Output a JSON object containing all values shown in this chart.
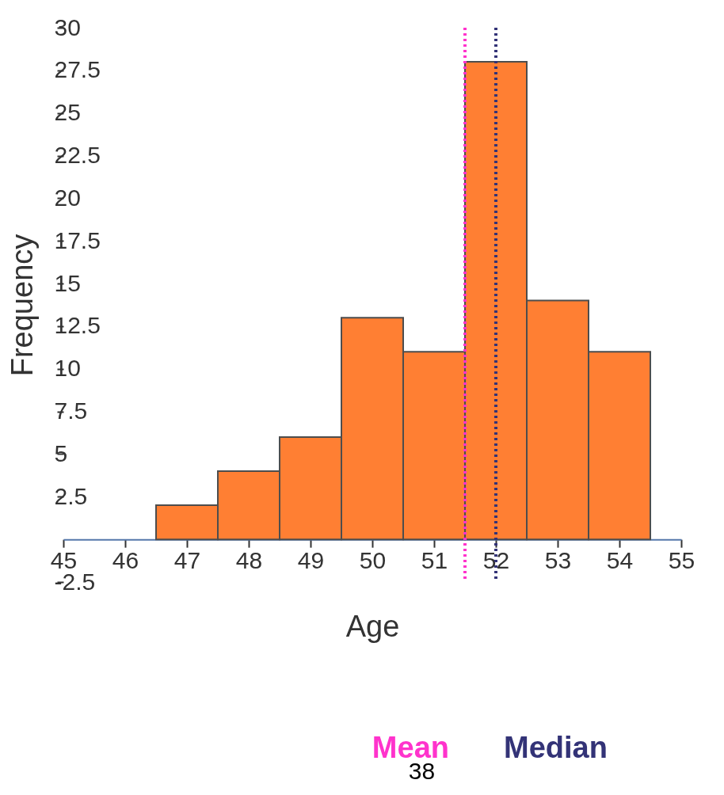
{
  "chart_data": {
    "type": "histogram",
    "xlabel": "Age",
    "ylabel": "Frequency",
    "bins": [
      46.5,
      47.5,
      48.5,
      49.5,
      50.5,
      51.5,
      52.5,
      53.5,
      54.5
    ],
    "values": [
      2,
      4,
      6,
      13,
      11,
      28,
      14,
      11
    ],
    "color": "#ff7f33",
    "xlim": [
      45,
      55
    ],
    "xticks": [
      45,
      46,
      47,
      48,
      49,
      50,
      51,
      52,
      53,
      54,
      55
    ],
    "ylim": [
      -2.5,
      30
    ],
    "yticks": [
      -2.5,
      2.5,
      5,
      7.5,
      10,
      12.5,
      15,
      17.5,
      20,
      22.5,
      25,
      27.5,
      30
    ],
    "grid": false,
    "ref_lines": [
      {
        "axis": "x",
        "value": 51.5,
        "label": "Mean",
        "color": "#ff33cc",
        "line_style": "dotted"
      },
      {
        "axis": "x",
        "value": 52,
        "label": "Median",
        "color": "#333377",
        "line_style": "dotted"
      }
    ],
    "annotations": [
      "38"
    ]
  }
}
